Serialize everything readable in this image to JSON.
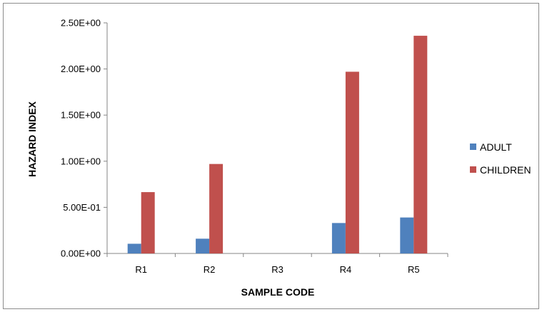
{
  "chart_data": {
    "type": "bar",
    "categories": [
      "R1",
      "R2",
      "R3",
      "R4",
      "R5"
    ],
    "series": [
      {
        "name": "ADULT",
        "values": [
          0.105,
          0.16,
          0,
          0.33,
          0.39
        ],
        "color": "#4F81BD"
      },
      {
        "name": "CHILDREN",
        "values": [
          0.665,
          0.97,
          0,
          1.97,
          2.36
        ],
        "color": "#C0504D"
      }
    ],
    "title": "",
    "xlabel": "SAMPLE CODE",
    "ylabel": "HAZARD INDEX",
    "ylim": [
      0,
      2.5
    ],
    "yticks": [
      {
        "value": 0,
        "label": "0.00E+00"
      },
      {
        "value": 0.5,
        "label": "5.00E-01"
      },
      {
        "value": 1.0,
        "label": "1.00E+00"
      },
      {
        "value": 1.5,
        "label": "1.50E+00"
      },
      {
        "value": 2.0,
        "label": "2.00E+00"
      },
      {
        "value": 2.5,
        "label": "2.50E+00"
      }
    ],
    "grid": false,
    "legend_position": "right"
  }
}
